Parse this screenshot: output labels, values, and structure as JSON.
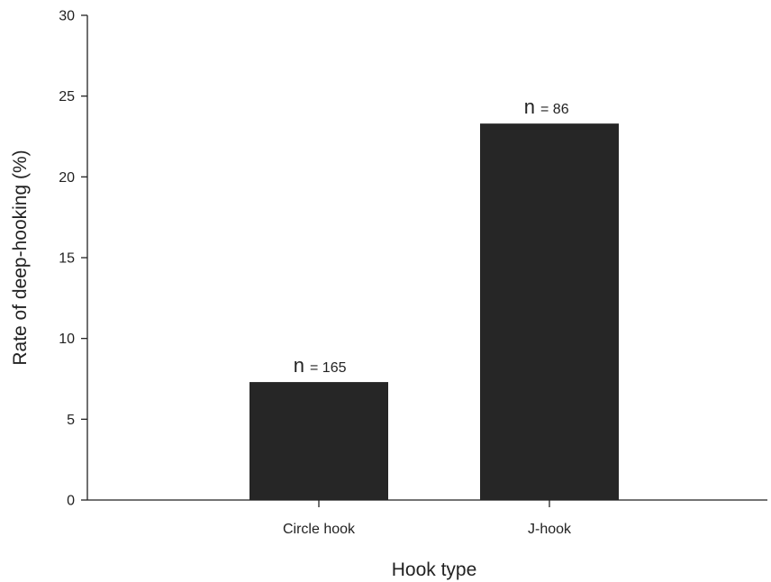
{
  "chart_data": {
    "type": "bar",
    "categories": [
      "Circle hook",
      "J-hook"
    ],
    "values": [
      7.3,
      23.3
    ],
    "sample_sizes": [
      {
        "letter": "n",
        "text": "= 165"
      },
      {
        "letter": "n",
        "text": "= 86"
      }
    ],
    "title": "",
    "xlabel": "Hook type",
    "ylabel": "Rate of deep-hooking (%)",
    "ylim": [
      0,
      30
    ],
    "yticks": [
      0,
      5,
      10,
      15,
      20,
      25,
      30
    ],
    "grid": false,
    "legend": "none",
    "bar_color": "#262626"
  }
}
